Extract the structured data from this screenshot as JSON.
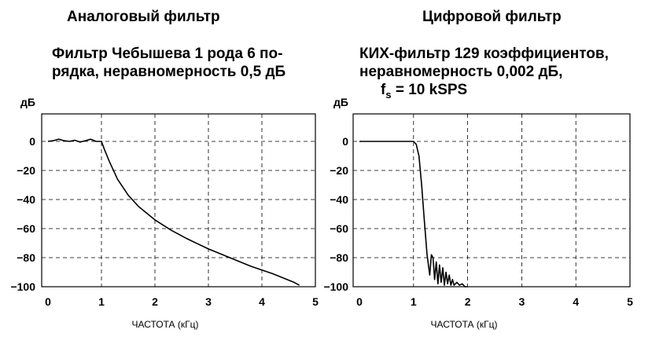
{
  "left": {
    "heading": "Аналоговый фильтр",
    "subtitle_line1": "Фильтр Чебышева 1 рода 6 по-",
    "subtitle_line2": "рядка, неравномерность 0,5 дБ"
  },
  "right": {
    "heading": "Цифровой фильтр",
    "subtitle_line1": "КИХ-фильтр 129 коэффициентов,",
    "subtitle_line2": "неравномерность 0,002 дБ,",
    "fs_symbol": "f",
    "fs_sub": "s",
    "fs_rest": " = 10 kSPS"
  },
  "chart_data": [
    {
      "type": "line",
      "ylabel": "дБ",
      "xlabel": "ЧАСТОТА (кГц)",
      "xlim": [
        0,
        5
      ],
      "ylim": [
        -100,
        0
      ],
      "x_ticks": [
        "0",
        "1",
        "2",
        "3",
        "4",
        "5"
      ],
      "y_ticks": [
        "0",
        "−20",
        "−40",
        "−60",
        "−80",
        "−100"
      ],
      "grid": true,
      "series": [
        {
          "x": [
            0,
            0.1,
            0.2,
            0.3,
            0.4,
            0.5,
            0.6,
            0.7,
            0.8,
            0.9,
            1.0,
            1.05,
            1.15,
            1.3,
            1.5,
            1.7,
            2.0,
            2.3,
            2.6,
            3.0,
            3.4,
            3.8,
            4.2,
            4.6,
            4.7
          ],
          "y": [
            0,
            0.5,
            1.5,
            0.5,
            0,
            0.8,
            -0.5,
            0.5,
            1.5,
            0,
            0,
            -5,
            -14,
            -26,
            -37,
            -45,
            -54,
            -61,
            -67,
            -74,
            -80,
            -86,
            -91,
            -97,
            -99
          ]
        }
      ]
    },
    {
      "type": "line",
      "ylabel": "дБ",
      "xlabel": "ЧАСТОТА (кГц)",
      "xlim": [
        0,
        5
      ],
      "ylim": [
        -100,
        0
      ],
      "x_ticks": [
        "0",
        "1",
        "2",
        "3",
        "4",
        "5"
      ],
      "y_ticks": [
        "0",
        "−20",
        "−40",
        "−60",
        "−80",
        "−100"
      ],
      "grid": true,
      "series": [
        {
          "x": [
            0,
            0.9,
            1.0,
            1.05,
            1.1,
            1.15,
            1.2,
            1.25,
            1.3,
            1.33,
            1.36,
            1.39,
            1.42,
            1.45,
            1.48,
            1.51,
            1.54,
            1.57,
            1.6,
            1.63,
            1.66,
            1.69,
            1.72,
            1.75,
            1.8,
            1.85,
            1.9,
            1.95,
            2.0
          ],
          "y": [
            0,
            0,
            0,
            -2,
            -10,
            -30,
            -55,
            -78,
            -92,
            -78,
            -80,
            -95,
            -83,
            -98,
            -85,
            -97,
            -87,
            -99,
            -90,
            -98,
            -92,
            -99,
            -95,
            -99,
            -97,
            -99,
            -98,
            -100,
            -100
          ]
        }
      ]
    }
  ]
}
